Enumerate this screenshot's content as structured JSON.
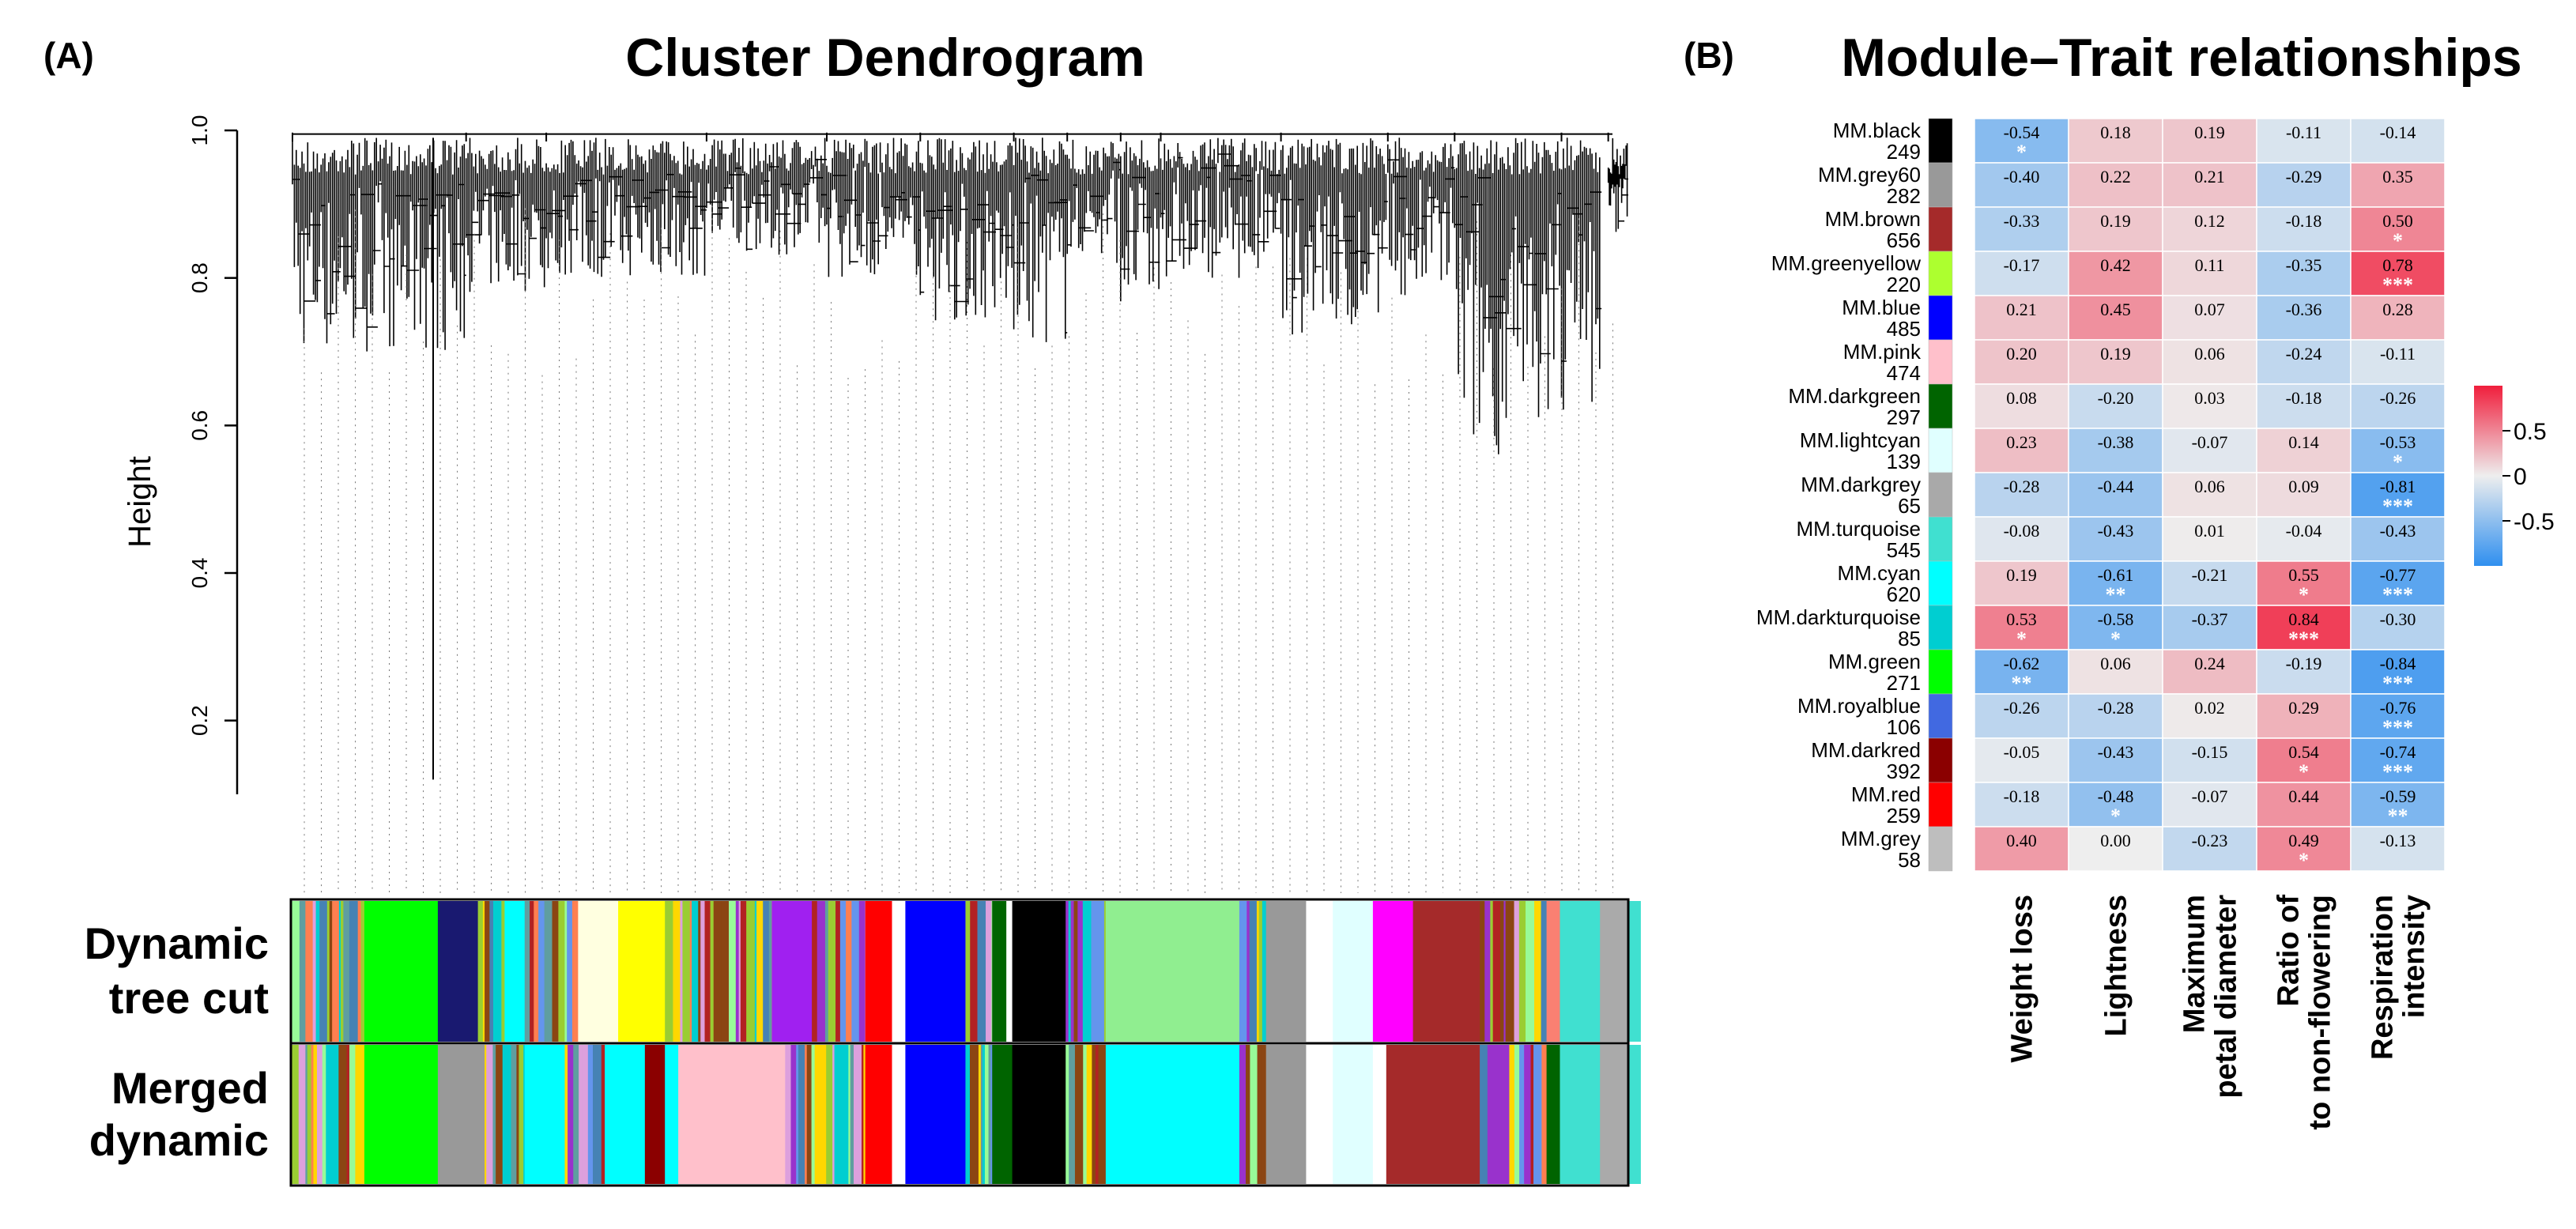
{
  "panel_a": {
    "label": "(A)",
    "chart_data": {
      "type": "dendrogram",
      "title": "Cluster Dendrogram",
      "ylabel": "Height",
      "ylim": [
        0.1,
        1.0
      ],
      "yticks": [
        "0.2",
        "0.4",
        "0.6",
        "0.8",
        "1.0"
      ],
      "ytick_values": [
        0.2,
        0.4,
        0.6,
        0.8,
        1.0
      ],
      "branch_color": "#000000",
      "color_rows": [
        {
          "label_lines": [
            "Dynamic",
            "tree cut"
          ]
        },
        {
          "label_lines": [
            "Merged",
            "dynamic"
          ]
        }
      ]
    }
  },
  "panel_b": {
    "label": "(B)",
    "chart_data": {
      "type": "heatmap",
      "title": "Module–Trait relationships",
      "traits": [
        [
          "Weight loss"
        ],
        [
          "Lightness"
        ],
        [
          "Maximum",
          "petal diameter"
        ],
        [
          "Ratio of",
          "to non-flowering"
        ],
        [
          "Respiration",
          "intensity"
        ]
      ],
      "modules": [
        {
          "name": "MM.black",
          "size": "249",
          "color": "#000000"
        },
        {
          "name": "MM.grey60",
          "size": "282",
          "color": "#999999"
        },
        {
          "name": "MM.brown",
          "size": "656",
          "color": "#a52a2a"
        },
        {
          "name": "MM.greenyellow",
          "size": "220",
          "color": "#adff2f"
        },
        {
          "name": "MM.blue",
          "size": "485",
          "color": "#0000ff"
        },
        {
          "name": "MM.pink",
          "size": "474",
          "color": "#ffc0cb"
        },
        {
          "name": "MM.darkgreen",
          "size": "297",
          "color": "#006400"
        },
        {
          "name": "MM.lightcyan",
          "size": "139",
          "color": "#e0ffff"
        },
        {
          "name": "MM.darkgrey",
          "size": "65",
          "color": "#a9a9a9"
        },
        {
          "name": "MM.turquoise",
          "size": "545",
          "color": "#40e0d0"
        },
        {
          "name": "MM.cyan",
          "size": "620",
          "color": "#00ffff"
        },
        {
          "name": "MM.darkturquoise",
          "size": "85",
          "color": "#00ced1"
        },
        {
          "name": "MM.green",
          "size": "271",
          "color": "#00ff00"
        },
        {
          "name": "MM.royalblue",
          "size": "106",
          "color": "#4169e1"
        },
        {
          "name": "MM.darkred",
          "size": "392",
          "color": "#8b0000"
        },
        {
          "name": "MM.red",
          "size": "259",
          "color": "#ff0000"
        },
        {
          "name": "MM.grey",
          "size": "58",
          "color": "#bebebe"
        }
      ],
      "values": [
        [
          -0.54,
          0.18,
          0.19,
          -0.11,
          -0.14
        ],
        [
          -0.4,
          0.22,
          0.21,
          -0.29,
          0.35
        ],
        [
          -0.33,
          0.19,
          0.12,
          -0.18,
          0.5
        ],
        [
          -0.17,
          0.42,
          0.11,
          -0.35,
          0.78
        ],
        [
          0.21,
          0.45,
          0.07,
          -0.36,
          0.28
        ],
        [
          0.2,
          0.19,
          0.06,
          -0.24,
          -0.11
        ],
        [
          0.08,
          -0.2,
          0.03,
          -0.18,
          -0.26
        ],
        [
          0.23,
          -0.38,
          -0.07,
          0.14,
          -0.53
        ],
        [
          -0.28,
          -0.44,
          0.06,
          0.09,
          -0.81
        ],
        [
          -0.08,
          -0.43,
          0.01,
          -0.04,
          -0.43
        ],
        [
          0.19,
          -0.61,
          -0.21,
          0.55,
          -0.77
        ],
        [
          0.53,
          -0.58,
          -0.37,
          0.84,
          -0.3
        ],
        [
          -0.62,
          0.06,
          0.24,
          -0.19,
          -0.84
        ],
        [
          -0.26,
          -0.28,
          0.02,
          0.29,
          -0.76
        ],
        [
          -0.05,
          -0.43,
          -0.15,
          0.54,
          -0.74
        ],
        [
          -0.18,
          -0.48,
          -0.07,
          0.44,
          -0.59
        ],
        [
          0.4,
          0.0,
          -0.23,
          0.49,
          -0.13
        ]
      ],
      "labels": [
        [
          "-0.54",
          "0.18",
          "0.19",
          "-0.11",
          "-0.14"
        ],
        [
          "-0.40",
          "0.22",
          "0.21",
          "-0.29",
          "0.35"
        ],
        [
          "-0.33",
          "0.19",
          "0.12",
          "-0.18",
          "0.50"
        ],
        [
          "-0.17",
          "0.42",
          "0.11",
          "-0.35",
          "0.78"
        ],
        [
          "0.21",
          "0.45",
          "0.07",
          "-0.36",
          "0.28"
        ],
        [
          "0.20",
          "0.19",
          "0.06",
          "-0.24",
          "-0.11"
        ],
        [
          "0.08",
          "-0.20",
          "0.03",
          "-0.18",
          "-0.26"
        ],
        [
          "0.23",
          "-0.38",
          "-0.07",
          "0.14",
          "-0.53"
        ],
        [
          "-0.28",
          "-0.44",
          "0.06",
          "0.09",
          "-0.81"
        ],
        [
          "-0.08",
          "-0.43",
          "0.01",
          "-0.04",
          "-0.43"
        ],
        [
          "0.19",
          "-0.61",
          "-0.21",
          "0.55",
          "-0.77"
        ],
        [
          "0.53",
          "-0.58",
          "-0.37",
          "0.84",
          "-0.30"
        ],
        [
          "-0.62",
          "0.06",
          "0.24",
          "-0.19",
          "-0.84"
        ],
        [
          "-0.26",
          "-0.28",
          "0.02",
          "0.29",
          "-0.76"
        ],
        [
          "-0.05",
          "-0.43",
          "-0.15",
          "0.54",
          "-0.74"
        ],
        [
          "-0.18",
          "-0.48",
          "-0.07",
          "0.44",
          "-0.59"
        ],
        [
          "0.40",
          "0.00",
          "-0.23",
          "0.49",
          "-0.13"
        ]
      ],
      "stars": [
        [
          "*",
          "",
          "",
          "",
          ""
        ],
        [
          "",
          "",
          "",
          "",
          ""
        ],
        [
          "",
          "",
          "",
          "",
          "*"
        ],
        [
          "",
          "",
          "",
          "",
          "***"
        ],
        [
          "",
          "",
          "",
          "",
          ""
        ],
        [
          "",
          "",
          "",
          "",
          ""
        ],
        [
          "",
          "",
          "",
          "",
          ""
        ],
        [
          "",
          "",
          "",
          "",
          "*"
        ],
        [
          "",
          "",
          "",
          "",
          "***"
        ],
        [
          "",
          "",
          "",
          "",
          ""
        ],
        [
          "",
          "**",
          "",
          "*",
          "***"
        ],
        [
          "*",
          "*",
          "",
          "***",
          ""
        ],
        [
          "**",
          "",
          "",
          "",
          "***"
        ],
        [
          "",
          "",
          "",
          "",
          "***"
        ],
        [
          "",
          "",
          "",
          "*",
          "***"
        ],
        [
          "",
          "*",
          "",
          "",
          "**"
        ],
        [
          "",
          "",
          "",
          "*",
          ""
        ]
      ],
      "color_scale": {
        "min": -1,
        "max": 1,
        "neg": "#2f8fef",
        "mid": "#eeeeee",
        "pos": "#f01e3c"
      },
      "legend_ticks": [
        "0.5",
        "0",
        "-0.5"
      ],
      "legend_tick_values": [
        0.5,
        0,
        -0.5
      ]
    }
  }
}
